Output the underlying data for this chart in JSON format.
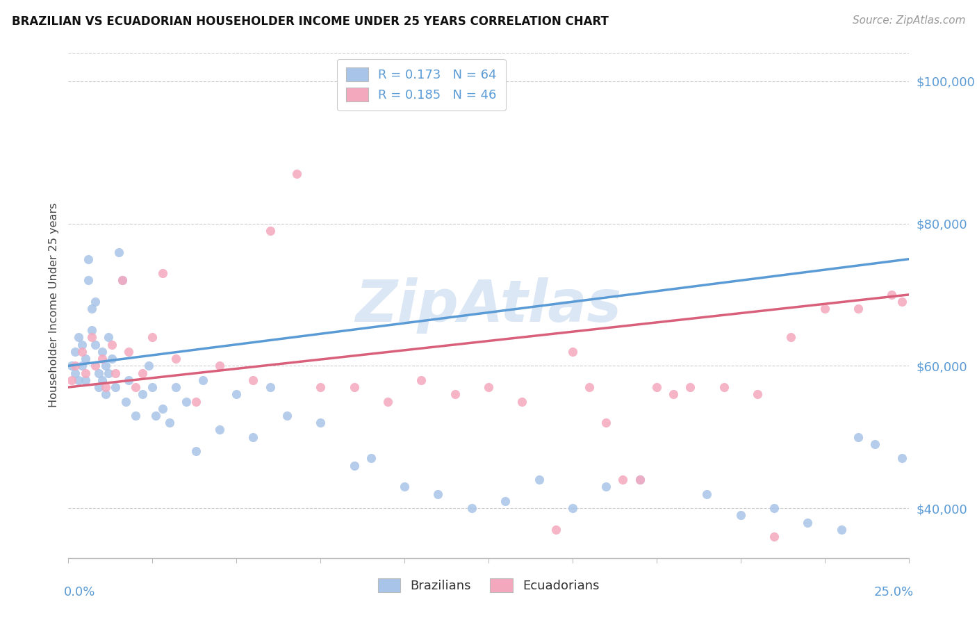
{
  "title": "BRAZILIAN VS ECUADORIAN HOUSEHOLDER INCOME UNDER 25 YEARS CORRELATION CHART",
  "source": "Source: ZipAtlas.com",
  "ylabel": "Householder Income Under 25 years",
  "xmin": 0.0,
  "xmax": 0.25,
  "ymin": 33000,
  "ymax": 104000,
  "yticks": [
    40000,
    60000,
    80000,
    100000
  ],
  "ytick_labels": [
    "$40,000",
    "$60,000",
    "$80,000",
    "$100,000"
  ],
  "brazil_R": 0.173,
  "brazil_N": 64,
  "ecuador_R": 0.185,
  "ecuador_N": 46,
  "brazil_scatter_color": "#a8c4e8",
  "ecuador_scatter_color": "#f4a8be",
  "brazil_line_color": "#5b9bd5",
  "ecuador_line_color": "#d9607a",
  "axis_label_color": "#5b9bd5",
  "watermark": "ZipAtlas",
  "watermark_color": "#c5d8ef",
  "brazil_x": [
    0.001,
    0.002,
    0.002,
    0.003,
    0.003,
    0.004,
    0.004,
    0.005,
    0.005,
    0.006,
    0.006,
    0.007,
    0.007,
    0.008,
    0.008,
    0.009,
    0.009,
    0.01,
    0.01,
    0.011,
    0.011,
    0.012,
    0.012,
    0.013,
    0.014,
    0.015,
    0.016,
    0.017,
    0.018,
    0.02,
    0.022,
    0.024,
    0.025,
    0.026,
    0.028,
    0.03,
    0.032,
    0.035,
    0.038,
    0.04,
    0.045,
    0.05,
    0.055,
    0.06,
    0.065,
    0.075,
    0.085,
    0.09,
    0.1,
    0.11,
    0.12,
    0.13,
    0.14,
    0.15,
    0.16,
    0.17,
    0.19,
    0.2,
    0.21,
    0.22,
    0.23,
    0.235,
    0.24,
    0.248
  ],
  "brazil_y": [
    60000,
    59000,
    62000,
    58000,
    64000,
    60000,
    63000,
    61000,
    58000,
    75000,
    72000,
    68000,
    65000,
    69000,
    63000,
    59000,
    57000,
    62000,
    58000,
    60000,
    56000,
    64000,
    59000,
    61000,
    57000,
    76000,
    72000,
    55000,
    58000,
    53000,
    56000,
    60000,
    57000,
    53000,
    54000,
    52000,
    57000,
    55000,
    48000,
    58000,
    51000,
    56000,
    50000,
    57000,
    53000,
    52000,
    46000,
    47000,
    43000,
    42000,
    40000,
    41000,
    44000,
    40000,
    43000,
    44000,
    42000,
    39000,
    40000,
    38000,
    37000,
    50000,
    49000,
    47000
  ],
  "ecuador_x": [
    0.001,
    0.002,
    0.004,
    0.005,
    0.007,
    0.008,
    0.01,
    0.011,
    0.013,
    0.014,
    0.016,
    0.018,
    0.02,
    0.022,
    0.025,
    0.028,
    0.032,
    0.038,
    0.045,
    0.055,
    0.06,
    0.068,
    0.075,
    0.085,
    0.095,
    0.105,
    0.115,
    0.125,
    0.135,
    0.145,
    0.15,
    0.155,
    0.16,
    0.165,
    0.17,
    0.175,
    0.18,
    0.185,
    0.195,
    0.205,
    0.21,
    0.215,
    0.225,
    0.235,
    0.245,
    0.248
  ],
  "ecuador_y": [
    58000,
    60000,
    62000,
    59000,
    64000,
    60000,
    61000,
    57000,
    63000,
    59000,
    72000,
    62000,
    57000,
    59000,
    64000,
    73000,
    61000,
    55000,
    60000,
    58000,
    79000,
    87000,
    57000,
    57000,
    55000,
    58000,
    56000,
    57000,
    55000,
    37000,
    62000,
    57000,
    52000,
    44000,
    44000,
    57000,
    56000,
    57000,
    57000,
    56000,
    36000,
    64000,
    68000,
    68000,
    70000,
    69000
  ]
}
